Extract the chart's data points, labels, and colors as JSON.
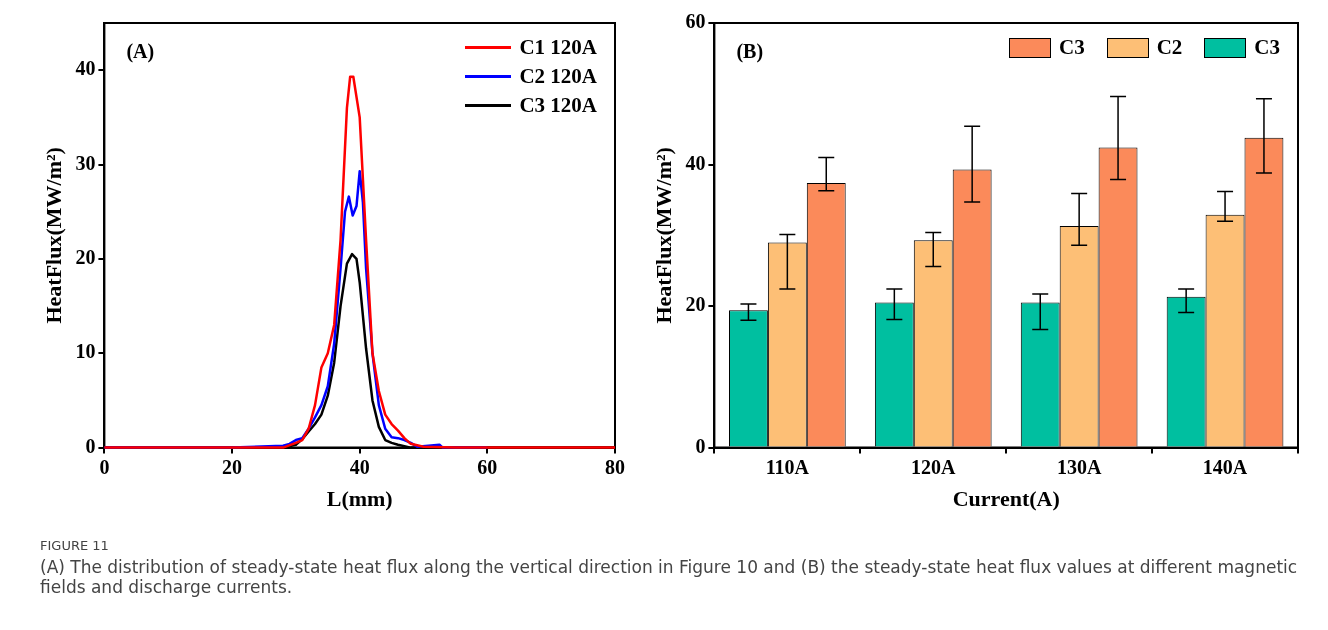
{
  "chart_data": [
    {
      "type": "line",
      "xlabel": "L(mm)",
      "ylabel": "HeatFlux(MW/m²)",
      "xlim": [
        0,
        80
      ],
      "xticks": [
        0,
        20,
        40,
        60,
        80
      ],
      "ylim": [
        0,
        45
      ],
      "yticks": [
        0,
        10,
        20,
        30,
        40
      ],
      "legend": "top right",
      "annotations": [
        "(A)",
        "FIGURE 11",
        "(A) The distribution of steady-state heat flux along the vertical direction in Figure 10 and (B) the steady-state heat flux values at different magnetic fields and discharge currents."
      ],
      "series": [
        {
          "name": "C1 120A",
          "color": "#ff0000",
          "x": [
            0,
            10,
            20,
            28,
            30,
            31,
            32,
            33,
            34,
            35,
            36,
            37,
            38,
            38.5,
            39,
            40,
            41,
            42,
            43,
            44,
            45,
            46,
            47,
            48,
            50,
            55,
            60,
            70,
            80
          ],
          "values": [
            0,
            0,
            0,
            0,
            0.5,
            0.8,
            2,
            4.5,
            8.5,
            10,
            13,
            22,
            36,
            39.3,
            39.3,
            35,
            22,
            10,
            6,
            3.5,
            2.5,
            1.8,
            1,
            0.4,
            0.1,
            0,
            0,
            0,
            0
          ]
        },
        {
          "name": "C2 120A",
          "color": "#0000ff",
          "x": [
            0,
            10,
            20,
            28,
            29,
            30,
            31,
            32,
            33,
            34,
            35,
            36,
            37,
            37.7,
            38.3,
            38.9,
            39.5,
            40,
            40.5,
            41,
            42,
            43,
            44,
            45,
            46,
            47,
            48,
            49,
            52.5,
            53,
            60
          ],
          "values": [
            0,
            0,
            0,
            0.2,
            0.4,
            0.8,
            1,
            2,
            3.2,
            4.5,
            6.5,
            11,
            19,
            25,
            26.6,
            24.6,
            25.6,
            29.3,
            26,
            19,
            10,
            4.5,
            2,
            1.1,
            1,
            0.8,
            0.5,
            0.1,
            0.3,
            0,
            0
          ]
        },
        {
          "name": "C3 120A",
          "color": "#000000",
          "x": [
            0,
            10,
            20,
            28,
            30,
            31,
            32,
            33,
            34,
            35,
            36,
            37,
            38,
            38.8,
            39.5,
            40,
            41,
            42,
            43,
            44,
            45,
            46,
            48,
            60,
            80
          ],
          "values": [
            0,
            0,
            0,
            0,
            0.3,
            0.9,
            1.7,
            2.5,
            3.5,
            5.5,
            9,
            15,
            19.5,
            20.5,
            20,
            17.5,
            10.5,
            5,
            2.2,
            0.8,
            0.5,
            0.3,
            0,
            0,
            0
          ]
        }
      ]
    },
    {
      "type": "bar",
      "xlabel": "Current(A)",
      "ylabel": "HeatFlux(MW/m²)",
      "categories": [
        "110A",
        "120A",
        "130A",
        "140A"
      ],
      "ylim": [
        0,
        60
      ],
      "yticks": [
        0,
        20,
        40,
        60
      ],
      "legend": "top right",
      "annotations": [
        "(B)"
      ],
      "series": [
        {
          "name": "C3",
          "color": "#00bfa0",
          "values": [
            19.4,
            20.5,
            20.5,
            21.3
          ],
          "errors": [
            [
              18.0,
              20.3
            ],
            [
              18.1,
              22.4
            ],
            [
              16.7,
              21.7
            ],
            [
              19.1,
              22.4
            ]
          ]
        },
        {
          "name": "C2",
          "color": "#fdbf76",
          "values": [
            29.0,
            29.3,
            31.3,
            32.9
          ],
          "errors": [
            [
              22.4,
              30.1
            ],
            [
              25.6,
              30.4
            ],
            [
              28.6,
              35.9
            ],
            [
              32.0,
              36.2
            ]
          ]
        },
        {
          "name": "C3",
          "color": "#fb8a5a",
          "values": [
            37.4,
            39.3,
            42.4,
            43.8
          ],
          "errors": [
            [
              36.3,
              41.0
            ],
            [
              34.7,
              45.4
            ],
            [
              37.9,
              49.6
            ],
            [
              38.8,
              49.3
            ]
          ]
        }
      ]
    }
  ]
}
